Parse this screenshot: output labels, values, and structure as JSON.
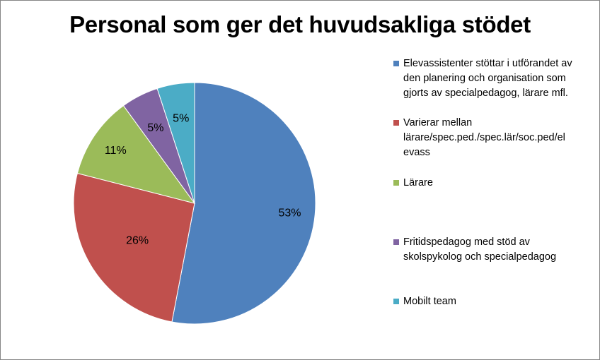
{
  "chart_data": {
    "type": "pie",
    "title": "Personal som ger det huvudsakliga stödet",
    "categories": [
      "Elevassistenter stöttar i utförandet av den planering och organisation som gjorts av specialpedagog, lärare mfl.",
      "Varierar mellan lärare/spec.ped./spec.lär/soc.ped/el evass",
      "Lärare",
      "Fritidspedagog med stöd av skolspykolog och specialpedagog",
      "Mobilt team"
    ],
    "values": [
      53,
      26,
      11,
      5,
      5
    ],
    "data_labels": [
      "53%",
      "26%",
      "11%",
      "5%",
      "5%"
    ],
    "colors": [
      "#4F81BD",
      "#C0504D",
      "#9BBB59",
      "#8064A2",
      "#4BACC6"
    ],
    "legend_position": "right"
  }
}
